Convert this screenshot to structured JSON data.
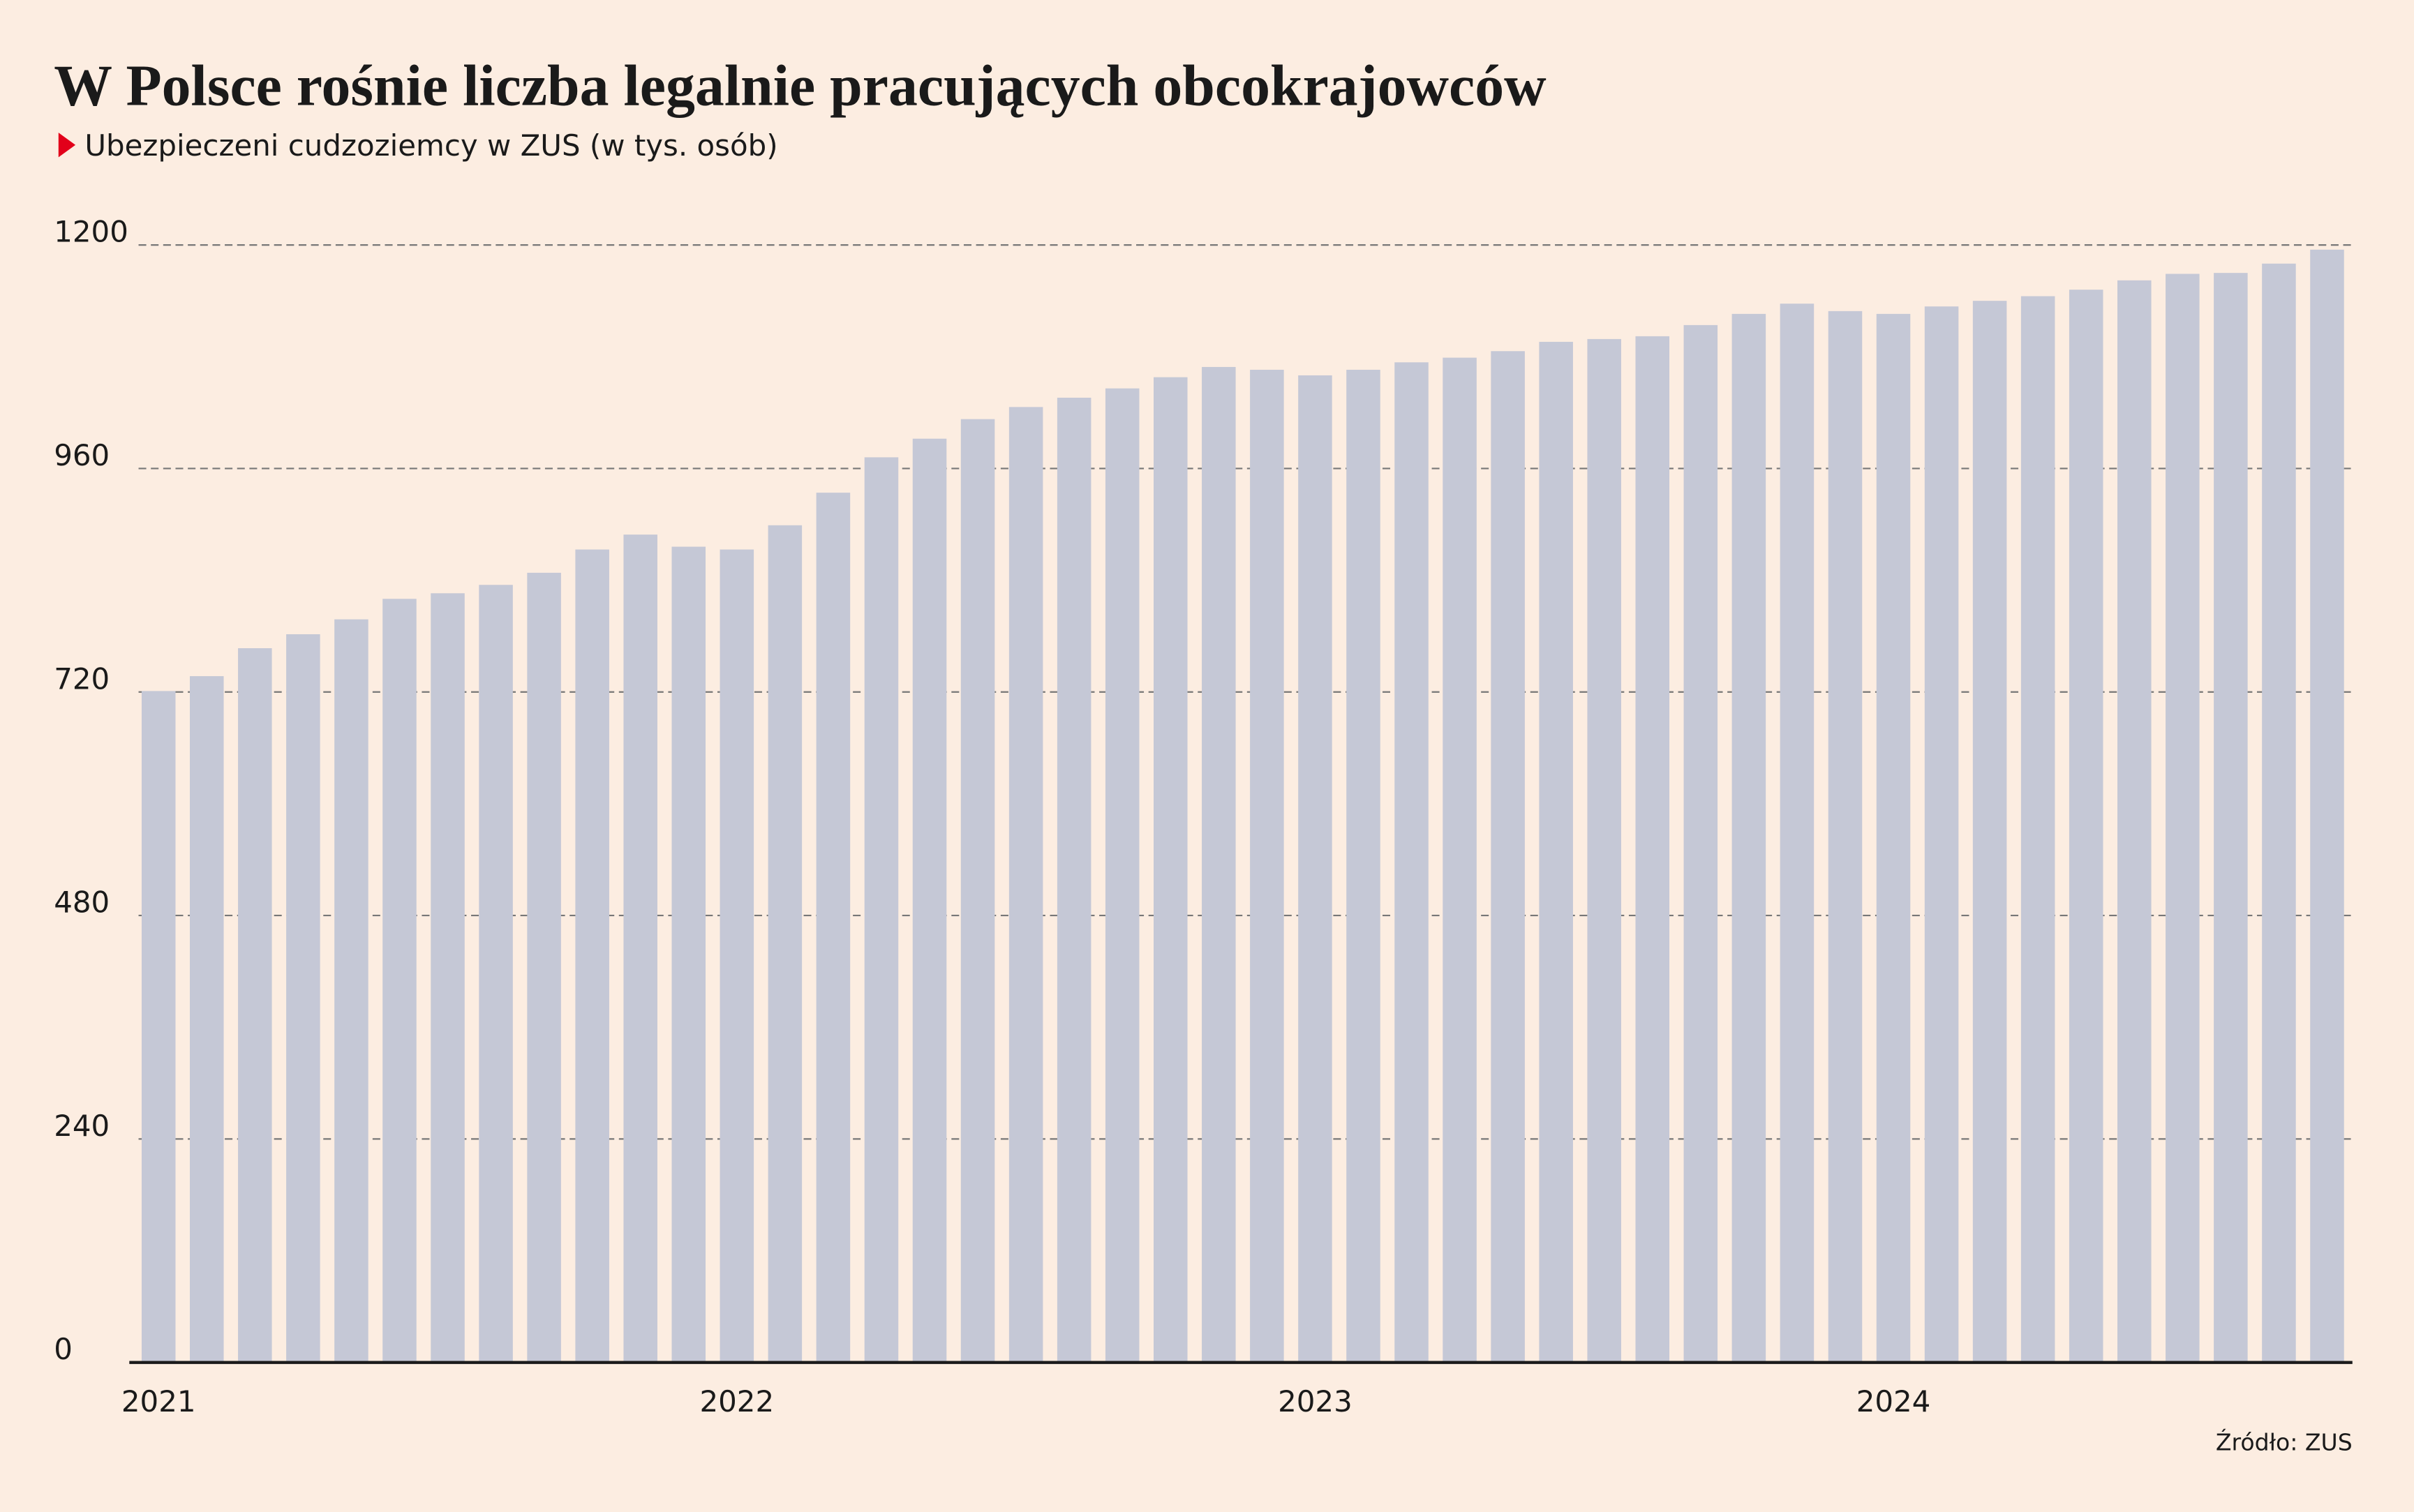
{
  "chart_data": {
    "type": "bar",
    "title": "W Polsce rośnie liczba legalnie pracujących obcokrajowców",
    "subtitle": "Ubezpieczeni cudzoziemcy w ZUS (w tys. osób)",
    "source": "Źródło: ZUS",
    "categories": [
      "2021",
      null,
      null,
      null,
      null,
      null,
      null,
      null,
      null,
      null,
      null,
      null,
      "2022",
      null,
      null,
      null,
      null,
      null,
      null,
      null,
      null,
      null,
      null,
      null,
      "2023",
      null,
      null,
      null,
      null,
      null,
      null,
      null,
      null,
      null,
      null,
      null,
      "2024",
      null,
      null,
      null,
      null,
      null,
      null,
      null,
      null,
      null
    ],
    "values": [
      721,
      737,
      767,
      782,
      798,
      820,
      826,
      835,
      848,
      873,
      889,
      876,
      873,
      899,
      934,
      972,
      992,
      1013,
      1026,
      1036,
      1046,
      1058,
      1069,
      1066,
      1060,
      1066,
      1074,
      1079,
      1086,
      1096,
      1099,
      1102,
      1114,
      1126,
      1137,
      1129,
      1126,
      1134,
      1140,
      1145,
      1152,
      1162,
      1169,
      1170,
      1180,
      1195
    ],
    "color": "#c5c8d6",
    "ylim": [
      0,
      1200
    ],
    "yticks": [
      0,
      240,
      480,
      720,
      960,
      1200
    ],
    "grid": true
  }
}
